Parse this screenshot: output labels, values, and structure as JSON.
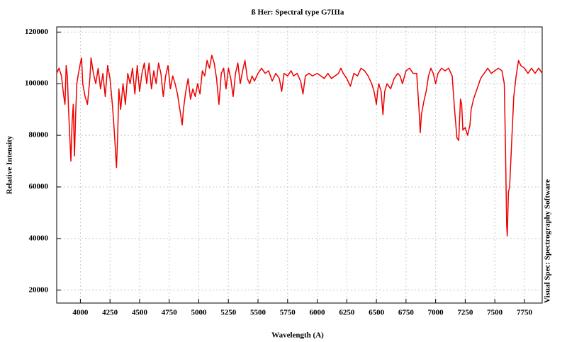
{
  "chart_data": {
    "type": "line",
    "title": "ß Her: Spectral type G7IIIa",
    "xlabel": "Wavelength (A)",
    "ylabel": "Relative Intensity",
    "annotation": "Visual Spec: Spectrography Software",
    "color": "#ee0000",
    "grid": true,
    "xlim": [
      3800,
      7900
    ],
    "ylim": [
      15000,
      122000
    ],
    "xticks": [
      4000,
      4250,
      4500,
      4750,
      5000,
      5250,
      5500,
      5750,
      6000,
      6250,
      6500,
      6750,
      7000,
      7250,
      7500,
      7750
    ],
    "yticks": [
      20000,
      40000,
      60000,
      80000,
      100000,
      120000
    ],
    "x": [
      3800,
      3820,
      3840,
      3860,
      3870,
      3880,
      3890,
      3900,
      3910,
      3920,
      3930,
      3940,
      3950,
      3960,
      3970,
      3980,
      4000,
      4010,
      4020,
      4040,
      4060,
      4080,
      4090,
      4110,
      4130,
      4150,
      4170,
      4190,
      4210,
      4230,
      4250,
      4270,
      4280,
      4295,
      4305,
      4315,
      4325,
      4340,
      4360,
      4380,
      4400,
      4420,
      4440,
      4460,
      4480,
      4500,
      4520,
      4540,
      4560,
      4580,
      4600,
      4620,
      4640,
      4660,
      4680,
      4700,
      4720,
      4740,
      4760,
      4780,
      4800,
      4820,
      4840,
      4860,
      4870,
      4890,
      4910,
      4930,
      4950,
      4970,
      4990,
      5010,
      5030,
      5050,
      5070,
      5090,
      5110,
      5130,
      5150,
      5170,
      5190,
      5210,
      5230,
      5250,
      5270,
      5290,
      5310,
      5330,
      5350,
      5370,
      5390,
      5410,
      5430,
      5450,
      5470,
      5500,
      5530,
      5560,
      5590,
      5620,
      5650,
      5680,
      5700,
      5720,
      5750,
      5780,
      5800,
      5830,
      5860,
      5880,
      5900,
      5930,
      5960,
      6000,
      6030,
      6060,
      6090,
      6120,
      6150,
      6180,
      6200,
      6220,
      6250,
      6280,
      6310,
      6340,
      6370,
      6400,
      6430,
      6460,
      6480,
      6500,
      6510,
      6520,
      6540,
      6555,
      6570,
      6590,
      6620,
      6650,
      6680,
      6700,
      6720,
      6750,
      6780,
      6810,
      6840,
      6860,
      6870,
      6880,
      6900,
      6920,
      6940,
      6960,
      6980,
      7000,
      7020,
      7050,
      7080,
      7110,
      7140,
      7160,
      7180,
      7195,
      7210,
      7220,
      7230,
      7250,
      7270,
      7290,
      7300,
      7320,
      7350,
      7380,
      7410,
      7440,
      7470,
      7500,
      7530,
      7560,
      7580,
      7590,
      7600,
      7605,
      7615,
      7625,
      7640,
      7660,
      7680,
      7700,
      7720,
      7750,
      7780,
      7810,
      7840,
      7870,
      7900
    ],
    "values": [
      104000,
      106000,
      103000,
      95000,
      92000,
      107000,
      103000,
      90000,
      80000,
      70000,
      85000,
      92000,
      72000,
      88000,
      100000,
      103000,
      108000,
      110000,
      100000,
      95000,
      92000,
      102000,
      110000,
      104000,
      100000,
      106000,
      98000,
      104000,
      95000,
      107000,
      102000,
      92000,
      86000,
      75000,
      67500,
      80000,
      98000,
      90000,
      100000,
      92000,
      104000,
      100000,
      106000,
      96000,
      107000,
      97000,
      104000,
      108000,
      100000,
      108000,
      98000,
      105000,
      100000,
      108000,
      104000,
      95000,
      103000,
      107000,
      98000,
      103000,
      100000,
      96000,
      90000,
      84000,
      90000,
      97000,
      102000,
      94000,
      98000,
      95000,
      100000,
      96000,
      105000,
      103000,
      109000,
      106000,
      111000,
      108000,
      102000,
      92000,
      104000,
      106000,
      98000,
      106000,
      102000,
      95000,
      104000,
      108000,
      100000,
      105000,
      109000,
      102000,
      100000,
      103000,
      101000,
      104000,
      106000,
      104000,
      105000,
      101000,
      104000,
      102000,
      97000,
      104000,
      103000,
      105000,
      103000,
      104000,
      101000,
      96000,
      103000,
      104000,
      103000,
      104000,
      103000,
      102000,
      104000,
      102000,
      103000,
      104000,
      106000,
      104000,
      102000,
      99000,
      104000,
      103000,
      106000,
      105000,
      103000,
      100000,
      97000,
      92000,
      97000,
      100000,
      97000,
      88000,
      97000,
      100000,
      98000,
      102000,
      104000,
      103000,
      100000,
      105000,
      106000,
      104000,
      104000,
      90000,
      81000,
      88000,
      93000,
      97000,
      103000,
      106000,
      104000,
      100000,
      104000,
      106000,
      105000,
      106000,
      103000,
      90000,
      79000,
      78000,
      94000,
      92000,
      82000,
      83000,
      80000,
      84000,
      90000,
      94000,
      98000,
      102000,
      104000,
      106000,
      104000,
      105000,
      106000,
      105000,
      100000,
      75000,
      45000,
      41000,
      58000,
      60000,
      75000,
      95000,
      103000,
      109000,
      107000,
      106000,
      104000,
      106000,
      104000,
      106000,
      104000
    ]
  }
}
